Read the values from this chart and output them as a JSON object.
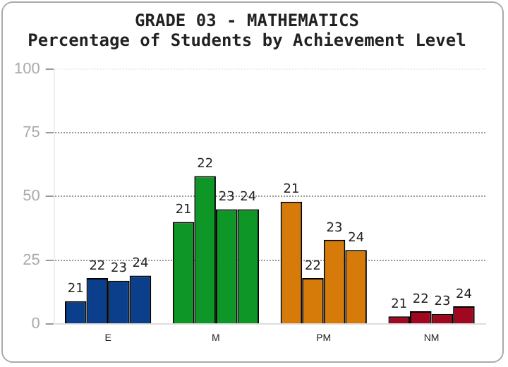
{
  "chart_data": {
    "type": "bar",
    "title": "GRADE 03 - MATHEMATICS",
    "subtitle": "Percentage of Students by Achievement Level",
    "categories": [
      "E",
      "M",
      "PM",
      "NM"
    ],
    "series": [
      {
        "name": "21",
        "colors": [
          "#0b3f8c",
          "#0e9626",
          "#d67b09",
          "#a0081f"
        ],
        "values": [
          9,
          40,
          48,
          3
        ]
      },
      {
        "name": "22",
        "colors": [
          "#0b3f8c",
          "#0e9626",
          "#d67b09",
          "#a0081f"
        ],
        "values": [
          18,
          58,
          18,
          5
        ]
      },
      {
        "name": "23",
        "colors": [
          "#0b3f8c",
          "#0e9626",
          "#d67b09",
          "#a0081f"
        ],
        "values": [
          17,
          45,
          33,
          4
        ]
      },
      {
        "name": "24",
        "colors": [
          "#0b3f8c",
          "#0e9626",
          "#d67b09",
          "#a0081f"
        ],
        "values": [
          19,
          45,
          29,
          7
        ]
      }
    ],
    "ylim": [
      0,
      100
    ],
    "yticks": [
      0,
      25,
      50,
      75,
      100
    ],
    "grid": "y",
    "legend": false
  }
}
